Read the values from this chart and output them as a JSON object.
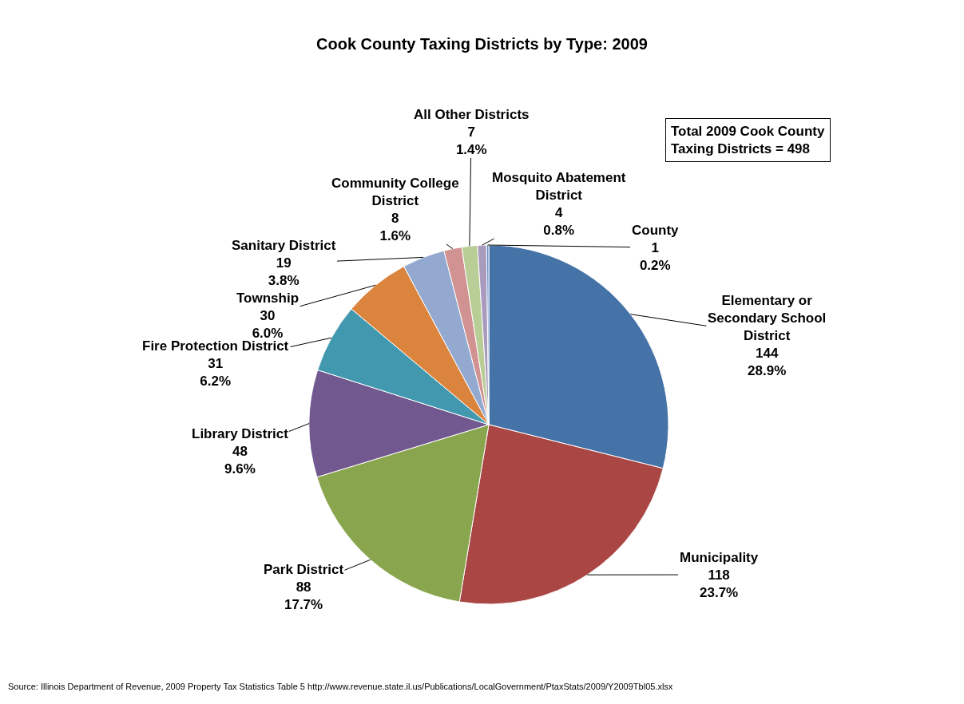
{
  "chart_data": {
    "type": "pie",
    "title": "Cook County Taxing Districts by Type: 2009",
    "categories": [
      "Elementary or Secondary School District",
      "Municipality",
      "Park District",
      "Library District",
      "Fire Protection District",
      "Township",
      "Sanitary District",
      "Community College District",
      "All Other Districts",
      "Mosquito Abatement District",
      "County"
    ],
    "values": [
      144,
      118,
      88,
      48,
      31,
      30,
      19,
      8,
      7,
      4,
      1
    ],
    "colors": [
      "#4572a7",
      "#aa4643",
      "#89a54e",
      "#71588f",
      "#4198af",
      "#db843d",
      "#93a9cf",
      "#d19392",
      "#b9cd96",
      "#a99bbd",
      "#6a8fc8"
    ],
    "value_labels": [
      "144\n28.9%",
      "118\n23.7%",
      "88\n17.7%",
      "48\n9.6%",
      "31\n6.2%",
      "30\n6.0%",
      "19\n3.8%",
      "8\n1.6%",
      "7\n1.4%",
      "4\n0.8%",
      "1\n0.2%"
    ],
    "annotations": [
      "Total 2009 Cook County Taxing Districts = 498",
      "Source: Illinois Department of Revenue, 2009 Property Tax Statistics Table 5 http://www.revenue.state.il.us/Publications/LocalGovernment/PtaxStats/2009/Y2009Tbl05.xlsx"
    ]
  }
}
